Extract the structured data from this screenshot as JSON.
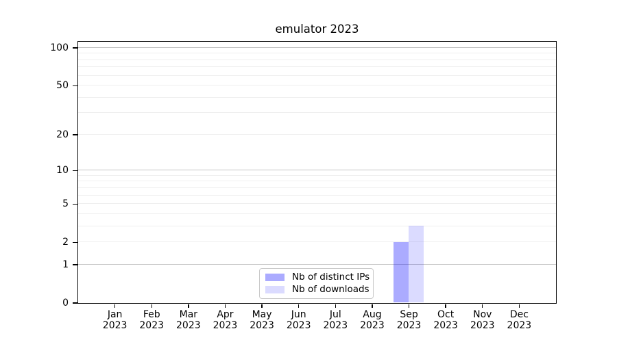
{
  "title": "emulator 2023",
  "chart_data": {
    "type": "bar",
    "title": "emulator 2023",
    "categories": [
      "Jan 2023",
      "Feb 2023",
      "Mar 2023",
      "Apr 2023",
      "May 2023",
      "Jun 2023",
      "Jul 2023",
      "Aug 2023",
      "Sep 2023",
      "Oct 2023",
      "Nov 2023",
      "Dec 2023"
    ],
    "x_tick_month_labels": [
      "Jan",
      "Feb",
      "Mar",
      "Apr",
      "May",
      "Jun",
      "Jul",
      "Aug",
      "Sep",
      "Oct",
      "Nov",
      "Dec"
    ],
    "x_tick_year": "2023",
    "series": [
      {
        "name": "Nb of distinct IPs",
        "color": "rgba(0,0,255,0.33)",
        "values": [
          0,
          0,
          0,
          0,
          0,
          0,
          0,
          0,
          2,
          0,
          0,
          0
        ]
      },
      {
        "name": "Nb of downloads",
        "color": "rgba(0,0,255,0.14)",
        "values": [
          0,
          0,
          0,
          0,
          0,
          0,
          0,
          0,
          3,
          0,
          0,
          0
        ]
      }
    ],
    "y_axis": {
      "scale": "log10(1+v)",
      "tick_values": [
        0,
        1,
        2,
        5,
        10,
        20,
        50,
        100
      ],
      "tick_labels": [
        "0",
        "1",
        "2",
        "5",
        "10",
        "20",
        "50",
        "100"
      ],
      "major_gridline_values": [
        1,
        10,
        100
      ],
      "minor_gridline_values": [
        2,
        3,
        4,
        5,
        6,
        7,
        8,
        9,
        20,
        30,
        40,
        50,
        60,
        70,
        80,
        90
      ],
      "ylim": [
        0,
        112
      ]
    },
    "legend": {
      "position": "lower center",
      "entries": [
        "Nb of distinct IPs",
        "Nb of downloads"
      ]
    },
    "colors": {
      "axis": "#000000",
      "major_grid": "#c3c3c3",
      "minor_grid": "#efefef",
      "legend_border": "#c9c9c9",
      "text": "#000000",
      "background": "#ffffff"
    }
  }
}
